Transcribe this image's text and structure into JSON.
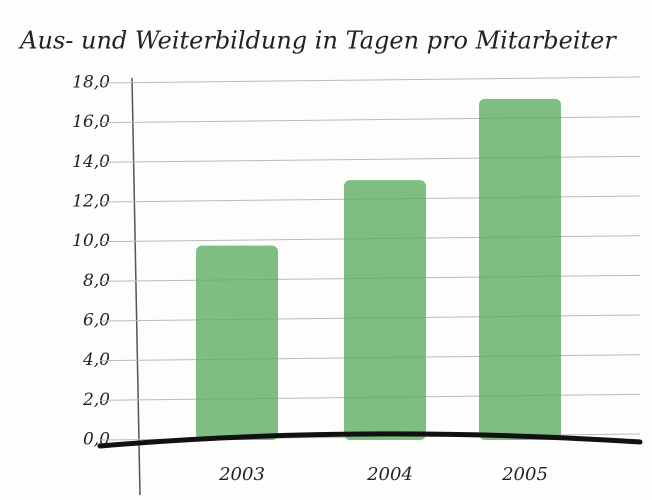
{
  "chart_data": {
    "type": "bar",
    "title": "Aus- und Weiterbildung in Tagen pro Mitarbeiter",
    "categories": [
      "2003",
      "2004",
      "2005"
    ],
    "values": [
      9.8,
      13.1,
      17.2
    ],
    "color": "#5fae64",
    "ylim": [
      0,
      18
    ],
    "yticks": [
      {
        "value": 0,
        "label": "0,0"
      },
      {
        "value": 2,
        "label": "2,0"
      },
      {
        "value": 4,
        "label": "4,0"
      },
      {
        "value": 6,
        "label": "6,0"
      },
      {
        "value": 8,
        "label": "8,0"
      },
      {
        "value": 10,
        "label": "10,0"
      },
      {
        "value": 12,
        "label": "12,0"
      },
      {
        "value": 14,
        "label": "14,0"
      },
      {
        "value": 16,
        "label": "16,0"
      },
      {
        "value": 18,
        "label": "18,0"
      }
    ],
    "grid": true
  }
}
